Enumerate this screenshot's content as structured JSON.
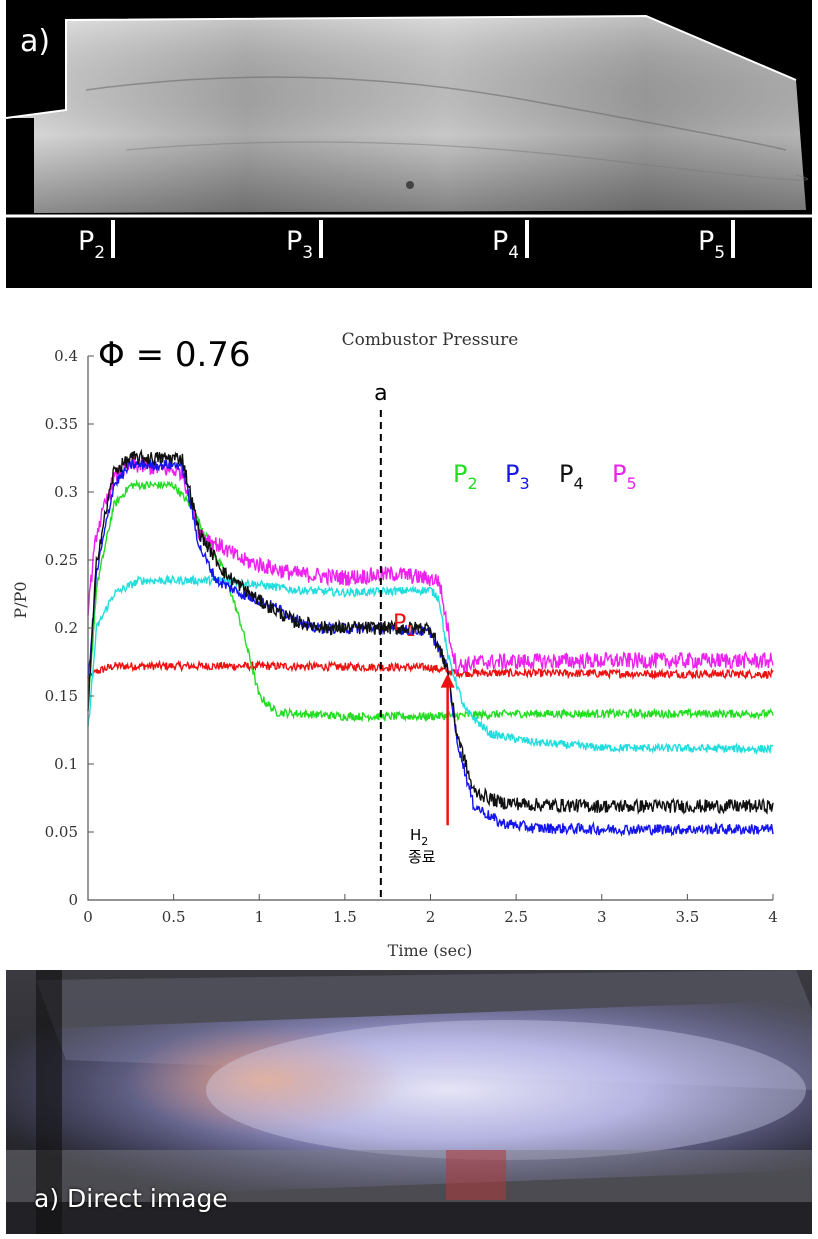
{
  "schlieren_panel": {
    "label": "a)",
    "ports": [
      {
        "name": "P",
        "sub": "2"
      },
      {
        "name": "P",
        "sub": "3"
      },
      {
        "name": "P",
        "sub": "4"
      },
      {
        "name": "P",
        "sub": "5"
      }
    ]
  },
  "phi_label": "Φ = 0.76",
  "marker_a_label": "a",
  "legend": [
    {
      "name": "P",
      "sub": "2",
      "color": "#22dd22"
    },
    {
      "name": "P",
      "sub": "3",
      "color": "#1515ee"
    },
    {
      "name": "P",
      "sub": "4",
      "color": "#111111"
    },
    {
      "name": "P",
      "sub": "5",
      "color": "#ee22ee"
    }
  ],
  "p1_label": {
    "name": "P",
    "sub": "1",
    "color": "#ee1111"
  },
  "annotation": {
    "line1_main": "H",
    "line1_sub": "2",
    "line2": "종료",
    "arrow_color": "#ee1111"
  },
  "chart_data": {
    "type": "line",
    "title": "Combustor Pressure",
    "xlabel": "Time (sec)",
    "ylabel": "P/P0",
    "xlim": [
      0,
      4
    ],
    "ylim": [
      0,
      0.4
    ],
    "xticks": [
      0,
      0.5,
      1,
      1.5,
      2,
      2.5,
      3,
      3.5,
      4
    ],
    "xtick_labels": [
      "0",
      "0.5",
      "1",
      "1.5",
      "2",
      "2.5",
      "3",
      "3.5",
      "4"
    ],
    "yticks": [
      0,
      0.05,
      0.1,
      0.15,
      0.2,
      0.25,
      0.3,
      0.35,
      0.4
    ],
    "ytick_labels": [
      "0",
      "0.05",
      "0.1",
      "0.15",
      "0.2",
      "0.25",
      "0.3",
      "0.35",
      "0.4"
    ],
    "vertical_marker": {
      "x": 1.71,
      "label": "a",
      "style": "dashed"
    },
    "arrow": {
      "x": 2.1,
      "y_from": 0.055,
      "y_to": 0.165
    },
    "series": [
      {
        "name": "P1",
        "color": "#ee1111",
        "noise": 0.003,
        "x": [
          0,
          0.05,
          0.15,
          1.0,
          2.0,
          2.15,
          4.0
        ],
        "y": [
          0.163,
          0.168,
          0.172,
          0.172,
          0.171,
          0.167,
          0.166
        ]
      },
      {
        "name": "P2",
        "color": "#22dd22",
        "noise": 0.003,
        "x": [
          0,
          0.05,
          0.15,
          0.25,
          0.5,
          0.6,
          0.8,
          0.9,
          1.0,
          1.1,
          1.5,
          2.0,
          2.5,
          3.0,
          4.0
        ],
        "y": [
          0.14,
          0.23,
          0.29,
          0.305,
          0.305,
          0.29,
          0.24,
          0.2,
          0.15,
          0.138,
          0.135,
          0.135,
          0.137,
          0.137,
          0.137
        ]
      },
      {
        "name": "P3",
        "color": "#1515ee",
        "noise": 0.004,
        "x": [
          0,
          0.05,
          0.15,
          0.25,
          0.55,
          0.65,
          0.75,
          0.9,
          1.1,
          1.3,
          1.7,
          2.0,
          2.1,
          2.15,
          2.25,
          2.4,
          2.6,
          3.0,
          4.0
        ],
        "y": [
          0.16,
          0.24,
          0.305,
          0.32,
          0.32,
          0.26,
          0.235,
          0.225,
          0.215,
          0.2,
          0.2,
          0.197,
          0.17,
          0.12,
          0.07,
          0.057,
          0.053,
          0.052,
          0.052
        ]
      },
      {
        "name": "P4",
        "color": "#111111",
        "noise": 0.005,
        "x": [
          0,
          0.05,
          0.15,
          0.25,
          0.55,
          0.65,
          0.8,
          1.0,
          1.2,
          1.4,
          1.7,
          2.0,
          2.1,
          2.15,
          2.25,
          2.4,
          2.6,
          3.0,
          4.0
        ],
        "y": [
          0.14,
          0.25,
          0.315,
          0.325,
          0.325,
          0.27,
          0.24,
          0.22,
          0.205,
          0.2,
          0.2,
          0.2,
          0.17,
          0.125,
          0.08,
          0.072,
          0.07,
          0.069,
          0.069
        ]
      },
      {
        "name": "P5",
        "color": "#ee22ee",
        "noise": 0.006,
        "x": [
          0,
          0.05,
          0.15,
          0.25,
          0.55,
          0.65,
          0.9,
          1.2,
          1.5,
          1.8,
          2.05,
          2.1,
          2.15,
          2.3,
          3.0,
          4.0
        ],
        "y": [
          0.215,
          0.27,
          0.31,
          0.32,
          0.315,
          0.27,
          0.25,
          0.24,
          0.237,
          0.24,
          0.235,
          0.2,
          0.172,
          0.175,
          0.176,
          0.176
        ]
      },
      {
        "name": "cyan",
        "color": "#22dddd",
        "noise": 0.003,
        "x": [
          0,
          0.05,
          0.15,
          0.3,
          0.8,
          1.0,
          1.2,
          1.5,
          2.0,
          2.05,
          2.1,
          2.2,
          2.35,
          2.6,
          3.0,
          4.0
        ],
        "y": [
          0.125,
          0.2,
          0.225,
          0.235,
          0.235,
          0.232,
          0.228,
          0.226,
          0.228,
          0.222,
          0.18,
          0.14,
          0.122,
          0.116,
          0.112,
          0.111
        ]
      }
    ]
  },
  "direct_image": {
    "caption": "a) Direct image"
  }
}
